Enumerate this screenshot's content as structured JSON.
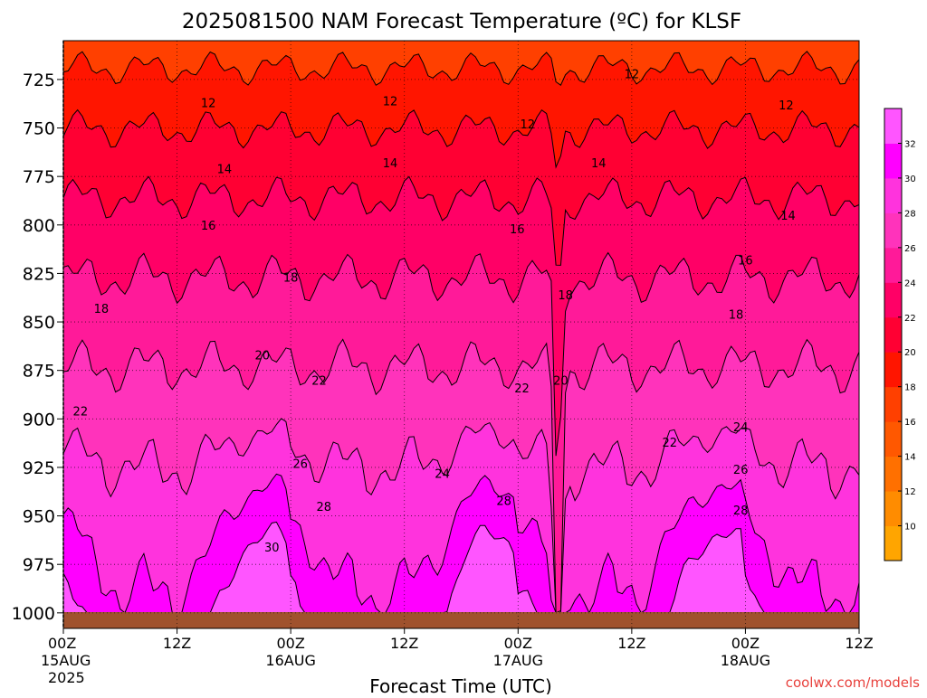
{
  "chart_data": {
    "type": "heatmap",
    "title": "2025081500 NAM Forecast Temperature (ºC) for KLSF",
    "xlabel": "Forecast Time (UTC)",
    "ylabel": "",
    "credit": "coolwx.com/models",
    "x_ticks": [
      {
        "hour": 0,
        "label": "00Z",
        "sub": "15AUG",
        "sub2": "2025"
      },
      {
        "hour": 12,
        "label": "12Z",
        "sub": "",
        "sub2": ""
      },
      {
        "hour": 24,
        "label": "00Z",
        "sub": "16AUG",
        "sub2": ""
      },
      {
        "hour": 36,
        "label": "12Z",
        "sub": "",
        "sub2": ""
      },
      {
        "hour": 48,
        "label": "00Z",
        "sub": "17AUG",
        "sub2": ""
      },
      {
        "hour": 60,
        "label": "12Z",
        "sub": "",
        "sub2": ""
      },
      {
        "hour": 72,
        "label": "00Z",
        "sub": "18AUG",
        "sub2": ""
      },
      {
        "hour": 84,
        "label": "12Z",
        "sub": "",
        "sub2": ""
      }
    ],
    "xlim": [
      0,
      84
    ],
    "ylim": [
      1008,
      705
    ],
    "y_ticks": [
      725,
      750,
      775,
      800,
      825,
      850,
      875,
      900,
      925,
      950,
      975,
      1000
    ],
    "surface_pressure_hPa": 1000,
    "colorbar": {
      "levels": [
        10,
        12,
        14,
        16,
        18,
        20,
        22,
        24,
        26,
        28,
        30,
        32
      ],
      "colors": [
        "#ffa500",
        "#ff8c00",
        "#ff7000",
        "#ff5800",
        "#ff4000",
        "#ff1500",
        "#ff0033",
        "#ff0066",
        "#ff1a99",
        "#ff33bb",
        "#ff33dd",
        "#ff00ff",
        "#ff55ff"
      ]
    },
    "grid": true,
    "contour_labels": [
      {
        "text": "12",
        "hour": 15.3,
        "p": 737
      },
      {
        "text": "12",
        "hour": 34.5,
        "p": 736
      },
      {
        "text": "12",
        "hour": 49.0,
        "p": 748
      },
      {
        "text": "12",
        "hour": 60.0,
        "p": 722
      },
      {
        "text": "12",
        "hour": 76.3,
        "p": 738
      },
      {
        "text": "14",
        "hour": 17.0,
        "p": 771
      },
      {
        "text": "14",
        "hour": 34.5,
        "p": 768
      },
      {
        "text": "14",
        "hour": 56.5,
        "p": 768
      },
      {
        "text": "14",
        "hour": 76.5,
        "p": 795
      },
      {
        "text": "16",
        "hour": 15.3,
        "p": 800
      },
      {
        "text": "16",
        "hour": 47.9,
        "p": 802
      },
      {
        "text": "16",
        "hour": 72.0,
        "p": 818
      },
      {
        "text": "18",
        "hour": 4.0,
        "p": 843
      },
      {
        "text": "18",
        "hour": 24.0,
        "p": 827
      },
      {
        "text": "18",
        "hour": 53.0,
        "p": 836
      },
      {
        "text": "18",
        "hour": 71.0,
        "p": 846
      },
      {
        "text": "20",
        "hour": 21.0,
        "p": 867
      },
      {
        "text": "20",
        "hour": 52.5,
        "p": 880
      },
      {
        "text": "22",
        "hour": 1.8,
        "p": 896
      },
      {
        "text": "22",
        "hour": 27.0,
        "p": 880
      },
      {
        "text": "22",
        "hour": 48.4,
        "p": 884
      },
      {
        "text": "22",
        "hour": 64.0,
        "p": 912
      },
      {
        "text": "24",
        "hour": 40.0,
        "p": 928
      },
      {
        "text": "24",
        "hour": 71.5,
        "p": 904
      },
      {
        "text": "26",
        "hour": 25.0,
        "p": 923
      },
      {
        "text": "26",
        "hour": 71.5,
        "p": 926
      },
      {
        "text": "28",
        "hour": 27.5,
        "p": 945
      },
      {
        "text": "28",
        "hour": 46.5,
        "p": 942
      },
      {
        "text": "28",
        "hour": 71.5,
        "p": 947
      },
      {
        "text": "30",
        "hour": 22.0,
        "p": 966
      }
    ]
  }
}
